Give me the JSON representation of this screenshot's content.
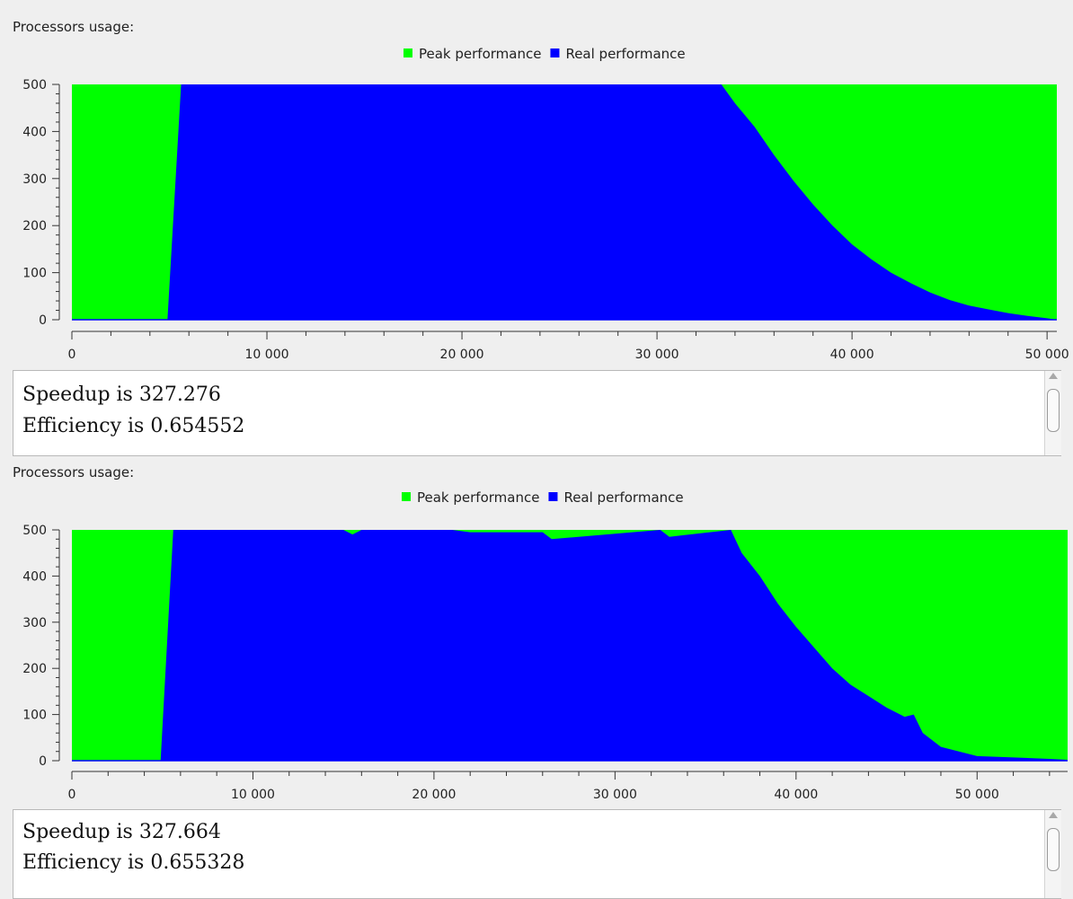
{
  "colors": {
    "peak": "#00ff00",
    "real": "#0000ff",
    "axis": "#333333",
    "background": "#efefef"
  },
  "panels": [
    {
      "section_title": "Processors usage:",
      "speedup_label": "Speedup is",
      "speedup_value": "327.276",
      "efficiency_label": "Efficiency is",
      "efficiency_value": "0.654552"
    },
    {
      "section_title": "Processors usage:",
      "speedup_label": "Speedup is",
      "speedup_value": "327.664",
      "efficiency_label": "Efficiency is",
      "efficiency_value": "0.655328"
    }
  ],
  "chart_data": [
    {
      "type": "area",
      "legend": [
        "Peak performance",
        "Real performance"
      ],
      "legend_position": "top-center",
      "xlim": [
        0,
        50500
      ],
      "ylim": [
        0,
        500
      ],
      "x_ticks": [
        0,
        10000,
        20000,
        30000,
        40000,
        50000
      ],
      "x_tick_labels": [
        "0",
        "10 000",
        "20 000",
        "30 000",
        "40 000",
        "50 000"
      ],
      "y_ticks": [
        0,
        100,
        200,
        300,
        400,
        500
      ],
      "y_tick_labels": [
        "0",
        "100",
        "200",
        "300",
        "400",
        "500"
      ],
      "series": [
        {
          "name": "Peak performance",
          "x": [
            0,
            50500
          ],
          "y": [
            500,
            500
          ]
        },
        {
          "name": "Real performance",
          "x": [
            0,
            4900,
            5600,
            33300,
            34000,
            35000,
            36000,
            37000,
            38000,
            39000,
            40000,
            41000,
            42000,
            43000,
            44000,
            45000,
            46000,
            47000,
            48000,
            49000,
            50000,
            50500
          ],
          "y": [
            0,
            0,
            500,
            500,
            460,
            410,
            350,
            295,
            245,
            200,
            160,
            128,
            100,
            78,
            58,
            42,
            30,
            22,
            14,
            8,
            3,
            0
          ]
        }
      ]
    },
    {
      "type": "area",
      "legend": [
        "Peak performance",
        "Real performance"
      ],
      "legend_position": "top-center",
      "xlim": [
        0,
        55000
      ],
      "ylim": [
        0,
        500
      ],
      "x_ticks": [
        0,
        10000,
        20000,
        30000,
        40000,
        50000
      ],
      "x_tick_labels": [
        "0",
        "10 000",
        "20 000",
        "30 000",
        "40 000",
        "50 000"
      ],
      "y_ticks": [
        0,
        100,
        200,
        300,
        400,
        500
      ],
      "y_tick_labels": [
        "0",
        "100",
        "200",
        "300",
        "400",
        "500"
      ],
      "series": [
        {
          "name": "Peak performance",
          "x": [
            0,
            55000
          ],
          "y": [
            500,
            500
          ]
        },
        {
          "name": "Real performance",
          "x": [
            0,
            4900,
            5600,
            15000,
            15500,
            16000,
            21000,
            22000,
            26000,
            26500,
            32500,
            33000,
            36400,
            37000,
            38000,
            39000,
            40000,
            41000,
            42000,
            43000,
            44000,
            45000,
            46000,
            46500,
            47000,
            48000,
            49000,
            50000,
            52000,
            54000,
            55000
          ],
          "y": [
            0,
            0,
            500,
            500,
            490,
            500,
            500,
            495,
            495,
            480,
            500,
            485,
            500,
            450,
            400,
            340,
            290,
            245,
            200,
            165,
            140,
            115,
            95,
            100,
            60,
            30,
            20,
            10,
            7,
            4,
            2
          ]
        }
      ]
    }
  ]
}
